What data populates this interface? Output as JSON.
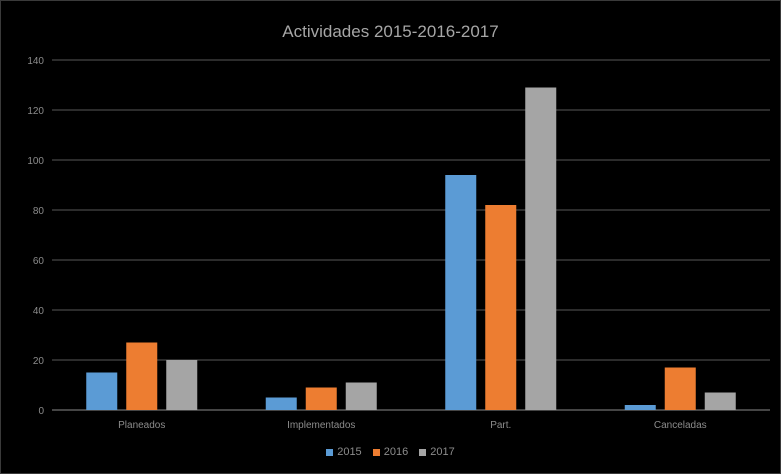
{
  "chart_data": {
    "type": "bar",
    "title": "Actividades 2015-2016-2017",
    "categories": [
      "Planeados",
      "Implementados",
      "Part.",
      "Canceladas"
    ],
    "series": [
      {
        "name": "2015",
        "color": "#5b9bd5",
        "values": [
          15,
          5,
          94,
          2
        ]
      },
      {
        "name": "2016",
        "color": "#ed7d31",
        "values": [
          27,
          9,
          82,
          17
        ]
      },
      {
        "name": "2017",
        "color": "#a5a5a5",
        "values": [
          20,
          11,
          129,
          7
        ]
      }
    ],
    "ylim": [
      0,
      140
    ],
    "yticks": [
      0,
      20,
      40,
      60,
      80,
      100,
      120,
      140
    ],
    "grid": true,
    "legend_position": "bottom",
    "xlabel": "",
    "ylabel": ""
  }
}
